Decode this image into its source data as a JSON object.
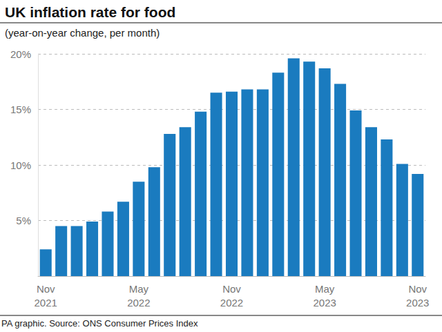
{
  "chart_data": {
    "type": "bar",
    "title": "UK inflation rate for food",
    "subtitle": "(year-on-year change, per month)",
    "note": "PA graphic. Source: ONS Consumer Prices Index",
    "categories": [
      "Nov\n2021",
      null,
      null,
      null,
      null,
      null,
      "May\n2022",
      null,
      null,
      null,
      null,
      null,
      "Nov\n2022",
      null,
      null,
      null,
      null,
      null,
      "May\n2023",
      null,
      null,
      null,
      null,
      null,
      "Nov\n2023"
    ],
    "values": [
      2.4,
      4.5,
      4.5,
      4.9,
      5.8,
      6.7,
      8.5,
      9.8,
      12.8,
      13.4,
      14.8,
      16.5,
      16.6,
      16.8,
      16.8,
      18.3,
      19.6,
      19.3,
      18.7,
      17.3,
      14.9,
      13.4,
      12.3,
      10.1,
      9.2
    ],
    "color": "#1a7bbf",
    "ylim": [
      0,
      20
    ],
    "yticks": [
      {
        "value": 5,
        "label": "5%"
      },
      {
        "value": 10,
        "label": "10%"
      },
      {
        "value": 15,
        "label": "15%"
      },
      {
        "value": 20,
        "label": "20%"
      }
    ],
    "grid": true
  }
}
